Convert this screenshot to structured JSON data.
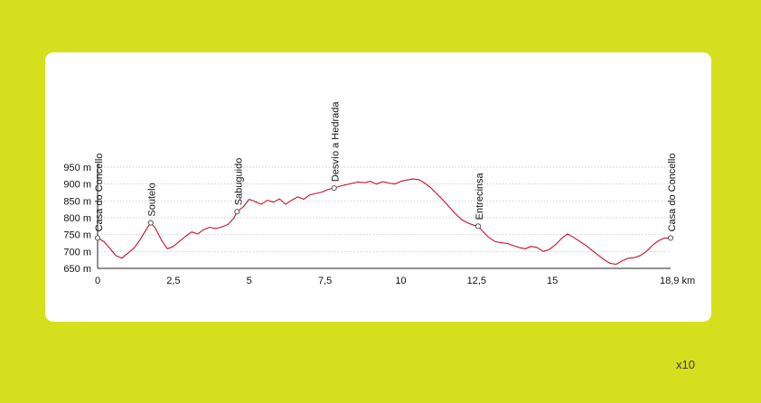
{
  "chart_data": {
    "type": "line",
    "title": "",
    "xlabel": "",
    "ylabel": "",
    "xlim": [
      0,
      18.9
    ],
    "ylim": [
      650,
      950
    ],
    "x_ticks": [
      {
        "value": 0,
        "label": "0"
      },
      {
        "value": 2.5,
        "label": "2,5"
      },
      {
        "value": 5,
        "label": "5"
      },
      {
        "value": 7.5,
        "label": "7,5"
      },
      {
        "value": 10,
        "label": "10"
      },
      {
        "value": 12.5,
        "label": "12,5"
      },
      {
        "value": 15,
        "label": "15"
      },
      {
        "value": 18.9,
        "label": "18,9 km"
      }
    ],
    "y_ticks": [
      {
        "value": 650,
        "label": "650 m"
      },
      {
        "value": 700,
        "label": "700 m"
      },
      {
        "value": 750,
        "label": "750 m"
      },
      {
        "value": 800,
        "label": "800 m"
      },
      {
        "value": 850,
        "label": "850 m"
      },
      {
        "value": 900,
        "label": "900 m"
      },
      {
        "value": 950,
        "label": "950 m"
      }
    ],
    "grid": true,
    "line_color": "#c8102e",
    "series": [
      {
        "x": [
          0,
          0.2,
          0.4,
          0.6,
          0.8,
          1.0,
          1.2,
          1.4,
          1.6,
          1.75,
          1.9,
          2.1,
          2.3,
          2.5,
          2.7,
          2.9,
          3.1,
          3.3,
          3.5,
          3.7,
          3.9,
          4.1,
          4.3,
          4.5,
          4.6,
          4.8,
          5.0,
          5.2,
          5.4,
          5.6,
          5.8,
          6.0,
          6.2,
          6.4,
          6.6,
          6.8,
          7.0,
          7.2,
          7.4,
          7.6,
          7.8,
          8.0,
          8.2,
          8.4,
          8.6,
          8.8,
          9.0,
          9.2,
          9.4,
          9.6,
          9.8,
          10.0,
          10.2,
          10.4,
          10.6,
          10.8,
          11.0,
          11.2,
          11.4,
          11.6,
          11.8,
          12.0,
          12.2,
          12.4,
          12.55,
          12.7,
          12.9,
          13.1,
          13.3,
          13.5,
          13.7,
          13.9,
          14.1,
          14.3,
          14.5,
          14.7,
          14.9,
          15.1,
          15.3,
          15.5,
          15.7,
          15.9,
          16.1,
          16.3,
          16.5,
          16.7,
          16.9,
          17.1,
          17.3,
          17.5,
          17.7,
          17.9,
          18.1,
          18.3,
          18.5,
          18.7,
          18.9
        ],
        "values": [
          740,
          730,
          710,
          688,
          680,
          695,
          710,
          735,
          765,
          785,
          770,
          735,
          708,
          715,
          730,
          745,
          758,
          752,
          765,
          772,
          768,
          773,
          780,
          800,
          818,
          832,
          855,
          848,
          840,
          852,
          846,
          856,
          840,
          852,
          862,
          855,
          868,
          872,
          876,
          884,
          888,
          894,
          898,
          902,
          906,
          904,
          908,
          900,
          907,
          903,
          900,
          908,
          912,
          915,
          913,
          902,
          888,
          870,
          852,
          832,
          812,
          795,
          785,
          778,
          775,
          760,
          742,
          730,
          726,
          724,
          718,
          712,
          708,
          715,
          712,
          700,
          706,
          720,
          738,
          752,
          742,
          730,
          718,
          704,
          690,
          676,
          665,
          662,
          672,
          680,
          682,
          688,
          700,
          718,
          732,
          740,
          740
        ]
      }
    ],
    "waypoints": [
      {
        "x": 0,
        "y": 740,
        "label": "Casa do Concello"
      },
      {
        "x": 1.75,
        "y": 785,
        "label": "Soutelo"
      },
      {
        "x": 4.6,
        "y": 818,
        "label": "Sabuguido"
      },
      {
        "x": 7.8,
        "y": 888,
        "label": "Desvío a Hedrada"
      },
      {
        "x": 12.55,
        "y": 775,
        "label": "Entrecinsa"
      },
      {
        "x": 18.9,
        "y": 740,
        "label": "Casa do Concello"
      }
    ]
  },
  "footer": {
    "scale_note": "x10"
  }
}
